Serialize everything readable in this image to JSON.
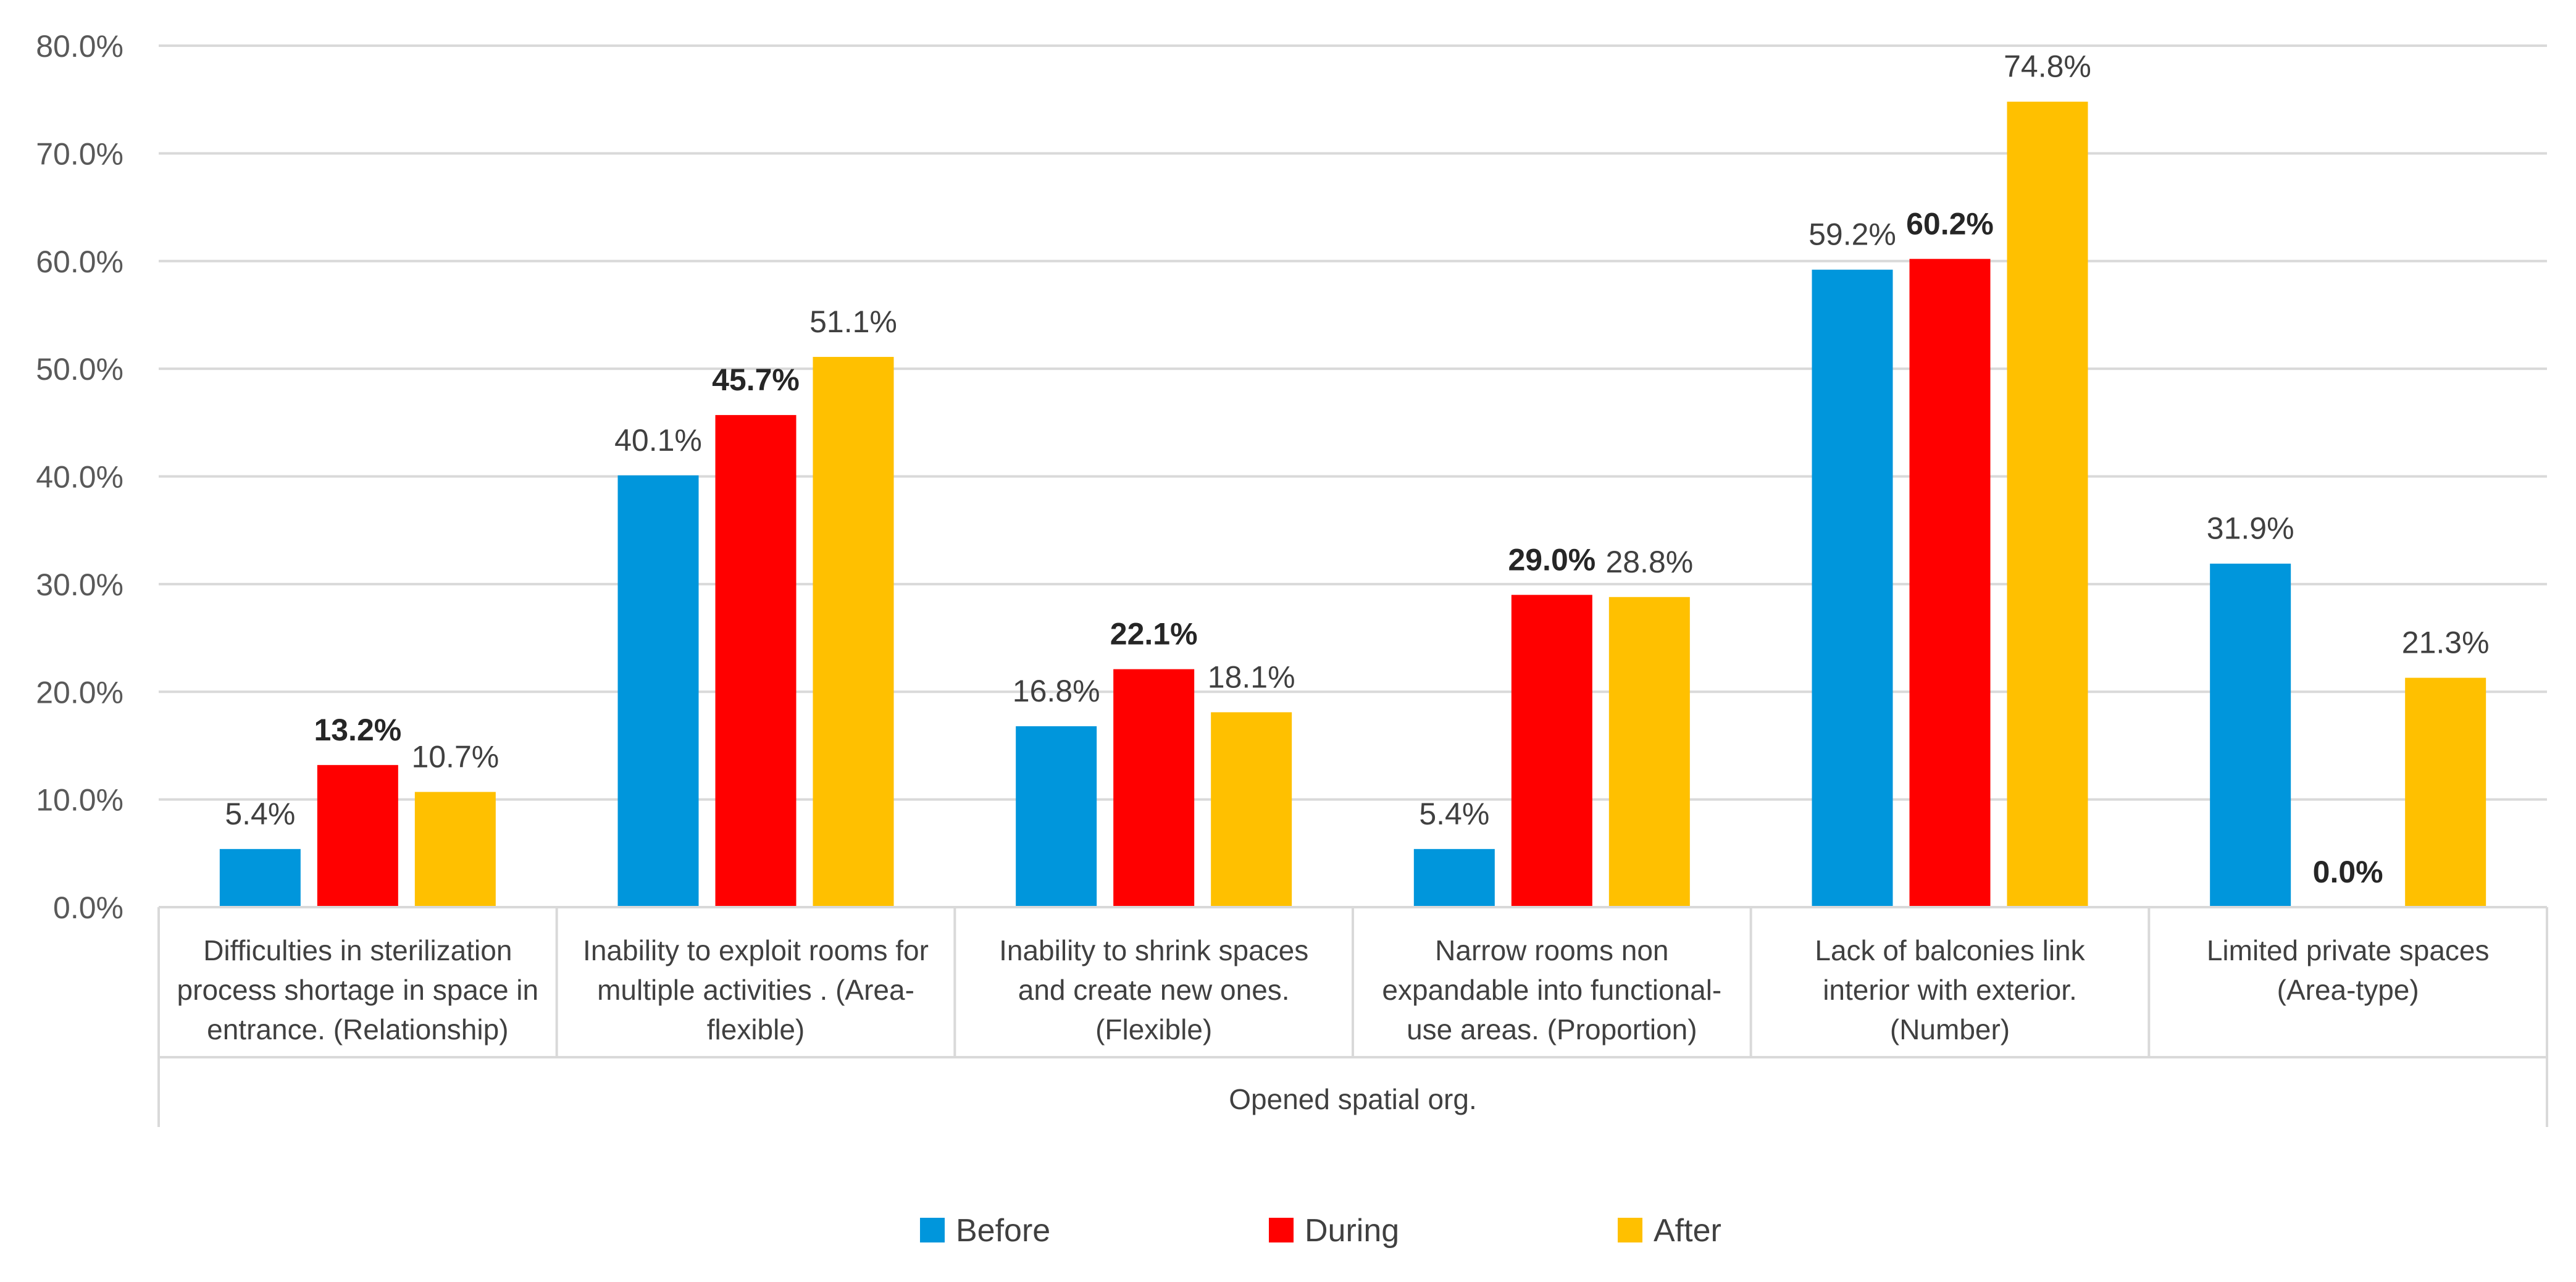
{
  "chart_data": {
    "type": "bar",
    "title": "",
    "xlabel": "",
    "ylabel": "",
    "ylim": [
      0,
      80
    ],
    "ytick_step": 10,
    "ytick_format_suffix": "%",
    "grid": true,
    "legend_position": "bottom",
    "group_label": "Opened spatial org.",
    "categories": [
      [
        "Difficulties in sterilization",
        "process shortage in space in",
        "entrance. (Relationship)"
      ],
      [
        "Inability to exploit rooms for",
        "multiple activities . (Area-",
        "flexible)"
      ],
      [
        "Inability to shrink spaces",
        "and create new ones.",
        "(Flexible)"
      ],
      [
        "Narrow rooms non",
        "expandable into functional-",
        "use areas. (Proportion)"
      ],
      [
        "Lack of balconies link",
        "interior with exterior.",
        "(Number)"
      ],
      [
        "Limited private spaces",
        "(Area-type)"
      ]
    ],
    "series": [
      {
        "name": "Before",
        "color": "#0096DC",
        "values": [
          5.4,
          40.1,
          16.8,
          5.4,
          59.2,
          31.9
        ],
        "bold_labels": false
      },
      {
        "name": "During",
        "color": "#FF0000",
        "values": [
          13.2,
          45.7,
          22.1,
          29.0,
          60.2,
          0.0
        ],
        "bold_labels": true
      },
      {
        "name": "After",
        "color": "#FFC000",
        "values": [
          10.7,
          51.1,
          18.1,
          28.8,
          74.8,
          21.3
        ],
        "bold_labels": false
      }
    ]
  }
}
